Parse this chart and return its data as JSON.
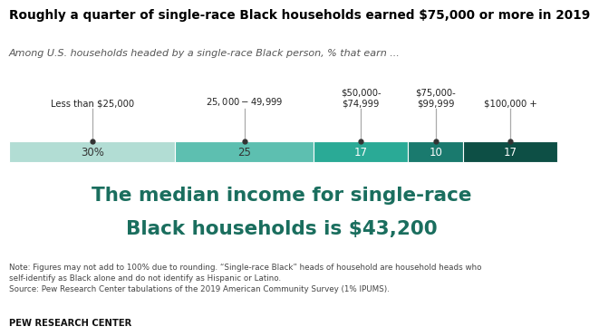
{
  "title": "Roughly a quarter of single-race Black households earned $75,000 or more in 2019",
  "subtitle": "Among U.S. households headed by a single-race Black person, % that earn ...",
  "categories": [
    "Less than $25,000",
    "$25,000-$49,999",
    "$50,000-\n$74,999",
    "$75,000-\n$99,999",
    "$100,000 +"
  ],
  "values": [
    30,
    25,
    17,
    10,
    17
  ],
  "labels": [
    "30%",
    "25",
    "17",
    "10",
    "17"
  ],
  "label_colors": [
    "#333333",
    "#333333",
    "#ffffff",
    "#ffffff",
    "#ffffff"
  ],
  "colors": [
    "#b2ddd4",
    "#5dbfb0",
    "#2aaa96",
    "#1a7a6e",
    "#0d4f45"
  ],
  "median_text_line1": "The median income for single-race",
  "median_text_line2": "Black households is $43,200",
  "median_color": "#1a6e5e",
  "note_text": "Note: Figures may not add to 100% due to rounding. “Single-race Black” heads of household are household heads who\nself-identify as Black alone and do not identify as Hispanic or Latino.\nSource: Pew Research Center tabulations of the 2019 American Community Survey (1% IPUMS).",
  "footer": "PEW RESEARCH CENTER",
  "bg_color": "#ffffff"
}
